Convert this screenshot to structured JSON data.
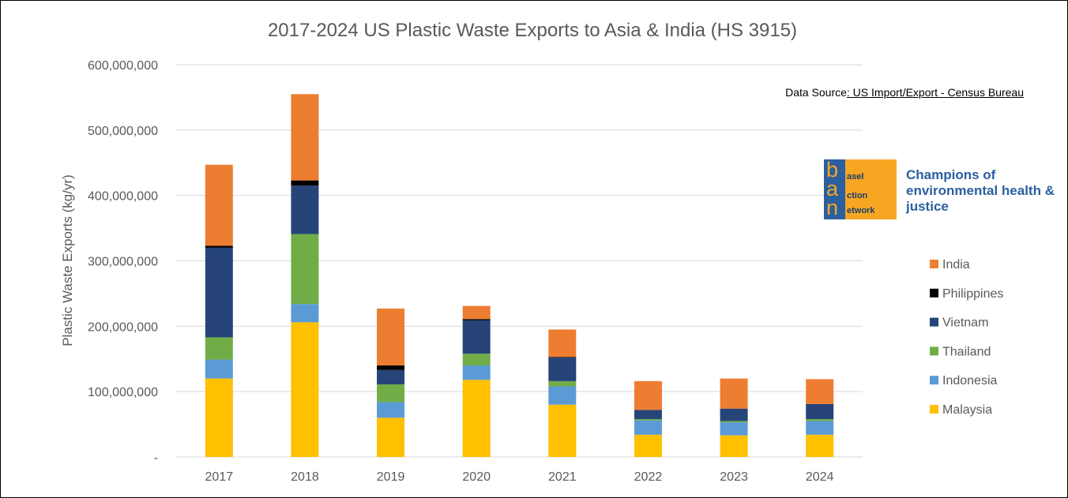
{
  "chart_data": {
    "type": "bar",
    "stacked": true,
    "title": "2017-2024 US Plastic Waste Exports to Asia & India (HS 3915)",
    "ylabel": "Plastic Waste Exports (kg/yr)",
    "xlabel": "",
    "ylim": [
      0,
      600000000
    ],
    "yticks": [
      0,
      100000000,
      200000000,
      300000000,
      400000000,
      500000000,
      600000000
    ],
    "ytick_labels": [
      "-",
      "100,000,000",
      "200,000,000",
      "300,000,000",
      "400,000,000",
      "500,000,000",
      "600,000,000"
    ],
    "grid": true,
    "legend_position": "right",
    "categories": [
      "2017",
      "2018",
      "2019",
      "2020",
      "2021",
      "2022",
      "2023",
      "2024"
    ],
    "series": [
      {
        "name": "Malaysia",
        "color": "#ffc000",
        "values": [
          120000000,
          206000000,
          60000000,
          118000000,
          80000000,
          34000000,
          33000000,
          34000000
        ]
      },
      {
        "name": "Indonesia",
        "color": "#5b9bd5",
        "values": [
          29000000,
          28000000,
          24000000,
          22000000,
          28000000,
          22000000,
          20000000,
          21000000
        ]
      },
      {
        "name": "Thailand",
        "color": "#70ad47",
        "values": [
          34000000,
          107000000,
          27000000,
          18000000,
          8000000,
          2000000,
          2000000,
          3000000
        ]
      },
      {
        "name": "Vietnam",
        "color": "#264478",
        "values": [
          137000000,
          74000000,
          22000000,
          51000000,
          36000000,
          14000000,
          19000000,
          23000000
        ]
      },
      {
        "name": "Philippines",
        "color": "#000000",
        "values": [
          3000000,
          8000000,
          7000000,
          2000000,
          1000000,
          0,
          0,
          0
        ]
      },
      {
        "name": "India",
        "color": "#ed7d31",
        "values": [
          124000000,
          132000000,
          87000000,
          20000000,
          42000000,
          44000000,
          46000000,
          38000000
        ]
      }
    ]
  },
  "source": {
    "prefix": "Data Source",
    "link_text": ": US Import/Export - Census Bureau"
  },
  "logo": {
    "letters": [
      "b",
      "a",
      "n"
    ],
    "words": [
      "asel",
      "ction",
      "etwork"
    ],
    "tagline": "Champions of environmental health & justice",
    "colors": {
      "blue": "#2b5f9e",
      "orange": "#f6a623"
    }
  }
}
